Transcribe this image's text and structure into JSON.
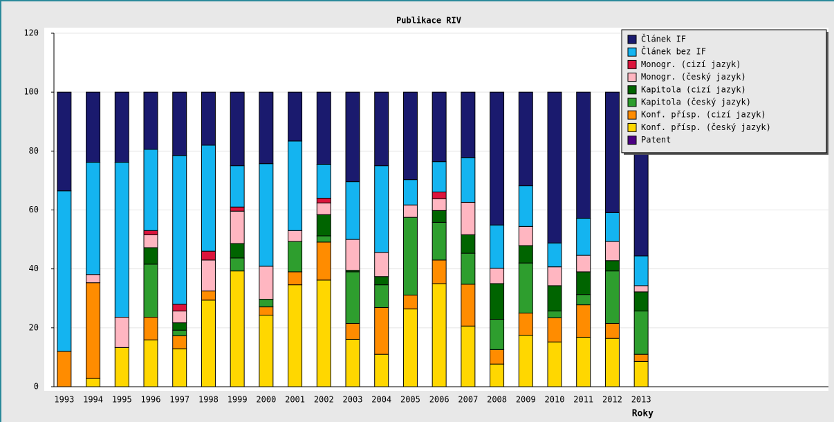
{
  "chart_data": {
    "type": "stacked_bar",
    "title": "Publikace RIV",
    "x_label": "Roky",
    "categories": [
      "1993",
      "1994",
      "1995",
      "1996",
      "1997",
      "1998",
      "1999",
      "2000",
      "2001",
      "2002",
      "2003",
      "2004",
      "2005",
      "2006",
      "2007",
      "2008",
      "2009",
      "2010",
      "2011",
      "2012",
      "2013"
    ],
    "series": [
      {
        "name": "Konf. přísp. (český jazyk)",
        "color": "#ffd700",
        "values": [
          0,
          2.8,
          13.3,
          15.9,
          12.9,
          29.4,
          39.3,
          24.3,
          34.6,
          36.2,
          16.1,
          11,
          26.4,
          35,
          20.6,
          7.7,
          17.5,
          15.2,
          16.8,
          16.4,
          8.6
        ]
      },
      {
        "name": "Konf. přísp. (cizí jazyk)",
        "color": "#ff8c00",
        "values": [
          12,
          32.5,
          0,
          7.7,
          4.4,
          3.1,
          0,
          2.8,
          4.4,
          12.9,
          5.4,
          15.9,
          4.7,
          8,
          14.2,
          4.9,
          7.5,
          8.2,
          11,
          5.1,
          2.4
        ]
      },
      {
        "name": "Kapitola (český jazyk)",
        "color": "#2e9e2e",
        "values": [
          0,
          0,
          0,
          18,
          1.9,
          0,
          4.4,
          2.6,
          10.3,
          2.1,
          17.5,
          7.7,
          26.4,
          12.8,
          10.5,
          10.3,
          17,
          2.3,
          3.5,
          17.8,
          14.7
        ]
      },
      {
        "name": "Kapitola (cizí jazyk)",
        "color": "#006400",
        "values": [
          0,
          0,
          0,
          5.6,
          2.5,
          0,
          4.9,
          0,
          0,
          7.2,
          0.5,
          2.8,
          0,
          4,
          6.3,
          12.1,
          5.9,
          8.6,
          7.7,
          3.5,
          6.5
        ]
      },
      {
        "name": "Monogr. (český jazyk)",
        "color": "#ffb6c1",
        "values": [
          0,
          2.8,
          10.3,
          4.4,
          4,
          10.5,
          11,
          11.2,
          3.7,
          4,
          10.5,
          8.2,
          4.2,
          4,
          11,
          5.2,
          6.5,
          6.4,
          5.6,
          6.5,
          2.1
        ]
      },
      {
        "name": "Monogr. (cizí jazyk)",
        "color": "#dc143c",
        "values": [
          0,
          0,
          0,
          1.4,
          2.3,
          3,
          1.4,
          0,
          0,
          1.6,
          0,
          0,
          0,
          2.3,
          0,
          0,
          0,
          0,
          0,
          0,
          0
        ]
      },
      {
        "name": "Článek bez IF",
        "color": "#14b4f0",
        "values": [
          54.5,
          38.1,
          52.6,
          27.6,
          50.5,
          36,
          14,
          34.8,
          30.4,
          11.5,
          19.6,
          29.4,
          8.6,
          10.3,
          15.2,
          14.7,
          13.8,
          8.1,
          12.6,
          9.8,
          10.1
        ]
      },
      {
        "name": "Článek IF",
        "color": "#1a1a6e",
        "values": [
          33.5,
          23.8,
          23.8,
          19.4,
          21.5,
          18,
          25,
          24.3,
          16.6,
          24.5,
          30.4,
          25,
          29.7,
          23.6,
          22.2,
          45.1,
          31.8,
          51.2,
          42.8,
          40.9,
          55.6
        ]
      },
      {
        "name": "Patent",
        "color": "#4b0082",
        "values": [
          0,
          0,
          0,
          0,
          0,
          0,
          0,
          0,
          0,
          0,
          0,
          0,
          0,
          0,
          0,
          0,
          0,
          0,
          0,
          0,
          0
        ]
      }
    ],
    "legend_order": [
      7,
      6,
      5,
      4,
      3,
      2,
      1,
      0,
      8
    ],
    "ylim": [
      0,
      120
    ],
    "yticks": [
      0,
      20,
      40,
      60,
      80,
      100,
      120
    ],
    "grid": true,
    "legend": "top-right"
  }
}
